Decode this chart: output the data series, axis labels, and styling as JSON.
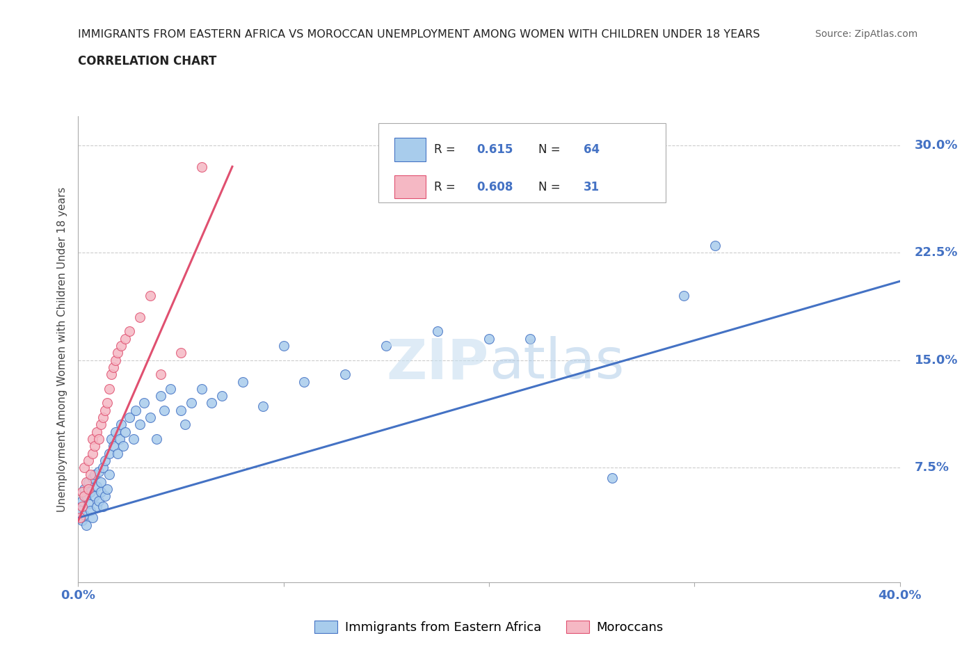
{
  "title_line1": "IMMIGRANTS FROM EASTERN AFRICA VS MOROCCAN UNEMPLOYMENT AMONG WOMEN WITH CHILDREN UNDER 18 YEARS",
  "title_line2": "CORRELATION CHART",
  "source_text": "Source: ZipAtlas.com",
  "ylabel": "Unemployment Among Women with Children Under 18 years",
  "xlim": [
    0.0,
    0.4
  ],
  "ylim": [
    -0.005,
    0.32
  ],
  "ytick_values": [
    0.075,
    0.15,
    0.225,
    0.3
  ],
  "ytick_labels": [
    "7.5%",
    "15.0%",
    "22.5%",
    "30.0%"
  ],
  "blue_R": 0.615,
  "blue_N": 64,
  "pink_R": 0.608,
  "pink_N": 31,
  "blue_color": "#a8ccec",
  "pink_color": "#f5b8c4",
  "blue_line_color": "#4472c4",
  "pink_line_color": "#e05070",
  "legend_label_blue": "Immigrants from Eastern Africa",
  "legend_label_pink": "Moroccans",
  "blue_scatter_x": [
    0.001,
    0.002,
    0.002,
    0.003,
    0.003,
    0.004,
    0.004,
    0.005,
    0.005,
    0.006,
    0.006,
    0.007,
    0.007,
    0.008,
    0.008,
    0.009,
    0.009,
    0.01,
    0.01,
    0.011,
    0.011,
    0.012,
    0.012,
    0.013,
    0.013,
    0.014,
    0.015,
    0.015,
    0.016,
    0.017,
    0.018,
    0.019,
    0.02,
    0.021,
    0.022,
    0.023,
    0.025,
    0.027,
    0.028,
    0.03,
    0.032,
    0.035,
    0.038,
    0.04,
    0.042,
    0.045,
    0.05,
    0.052,
    0.055,
    0.06,
    0.065,
    0.07,
    0.08,
    0.09,
    0.1,
    0.11,
    0.13,
    0.15,
    0.175,
    0.2,
    0.22,
    0.26,
    0.295,
    0.31
  ],
  "blue_scatter_y": [
    0.045,
    0.038,
    0.052,
    0.042,
    0.06,
    0.035,
    0.055,
    0.05,
    0.065,
    0.045,
    0.058,
    0.04,
    0.068,
    0.055,
    0.07,
    0.048,
    0.062,
    0.052,
    0.072,
    0.058,
    0.065,
    0.048,
    0.075,
    0.055,
    0.08,
    0.06,
    0.07,
    0.085,
    0.095,
    0.09,
    0.1,
    0.085,
    0.095,
    0.105,
    0.09,
    0.1,
    0.11,
    0.095,
    0.115,
    0.105,
    0.12,
    0.11,
    0.095,
    0.125,
    0.115,
    0.13,
    0.115,
    0.105,
    0.12,
    0.13,
    0.12,
    0.125,
    0.135,
    0.118,
    0.16,
    0.135,
    0.14,
    0.16,
    0.17,
    0.165,
    0.165,
    0.068,
    0.195,
    0.23
  ],
  "pink_scatter_x": [
    0.001,
    0.002,
    0.002,
    0.003,
    0.003,
    0.004,
    0.005,
    0.005,
    0.006,
    0.007,
    0.007,
    0.008,
    0.009,
    0.01,
    0.011,
    0.012,
    0.013,
    0.014,
    0.015,
    0.016,
    0.017,
    0.018,
    0.019,
    0.021,
    0.023,
    0.025,
    0.03,
    0.035,
    0.04,
    0.05,
    0.06
  ],
  "pink_scatter_y": [
    0.04,
    0.048,
    0.058,
    0.055,
    0.075,
    0.065,
    0.06,
    0.08,
    0.07,
    0.085,
    0.095,
    0.09,
    0.1,
    0.095,
    0.105,
    0.11,
    0.115,
    0.12,
    0.13,
    0.14,
    0.145,
    0.15,
    0.155,
    0.16,
    0.165,
    0.17,
    0.18,
    0.195,
    0.14,
    0.155,
    0.285
  ],
  "blue_trend_x": [
    0.0,
    0.4
  ],
  "blue_trend_y": [
    0.04,
    0.205
  ],
  "pink_trend_x": [
    0.0,
    0.075
  ],
  "pink_trend_y": [
    0.038,
    0.285
  ]
}
